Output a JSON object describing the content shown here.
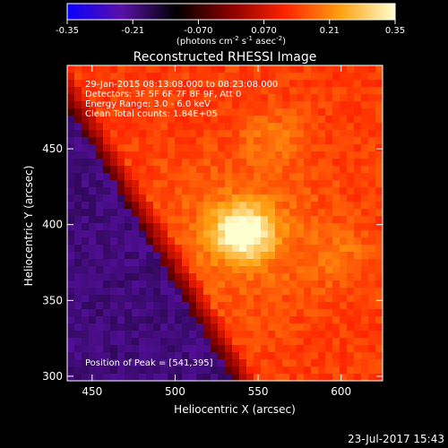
{
  "chart_data": {
    "type": "heatmap",
    "title": "Reconstructed RHESSI Image",
    "colorbar": {
      "ticks": [
        "-0.35",
        "-0.21",
        "-0.070",
        "0.070",
        "0.21",
        "0.35"
      ],
      "range": [
        -0.35,
        0.35
      ],
      "unit_base": "(photons cm",
      "unit_exp1": "-2",
      "unit_mid": " s",
      "unit_exp2": "-1",
      "unit_mid2": " asec",
      "unit_exp3": "-2",
      "unit_end": ")",
      "colors": [
        "#0a00ff",
        "#5a10a8",
        "#000000",
        "#8a0000",
        "#ff2400",
        "#ffa010",
        "#ffffd0"
      ]
    },
    "xlabel": "Heliocentric X (arcsec)",
    "ylabel": "Heliocentric Y (arcsec)",
    "x_ticks": [
      "450",
      "500",
      "550",
      "600"
    ],
    "y_ticks": [
      "300",
      "350",
      "400",
      "450"
    ],
    "xlim": [
      435,
      625
    ],
    "ylim": [
      297,
      505
    ],
    "info_lines": [
      "29-Jan-2015 08:13:08.000 to 08:23:08.000",
      "Detectors: 3F 5F 6F 7F 8F 9F, Att 0",
      "Energy Range: 3.0 - 6.0 keV",
      "Clean    Total counts: 1.84E+05"
    ],
    "peak_label": "Position of Peak = [541,395]",
    "peak": {
      "x": 541,
      "y": 395
    },
    "timestamp": "23-Jul-2017 15:43"
  }
}
